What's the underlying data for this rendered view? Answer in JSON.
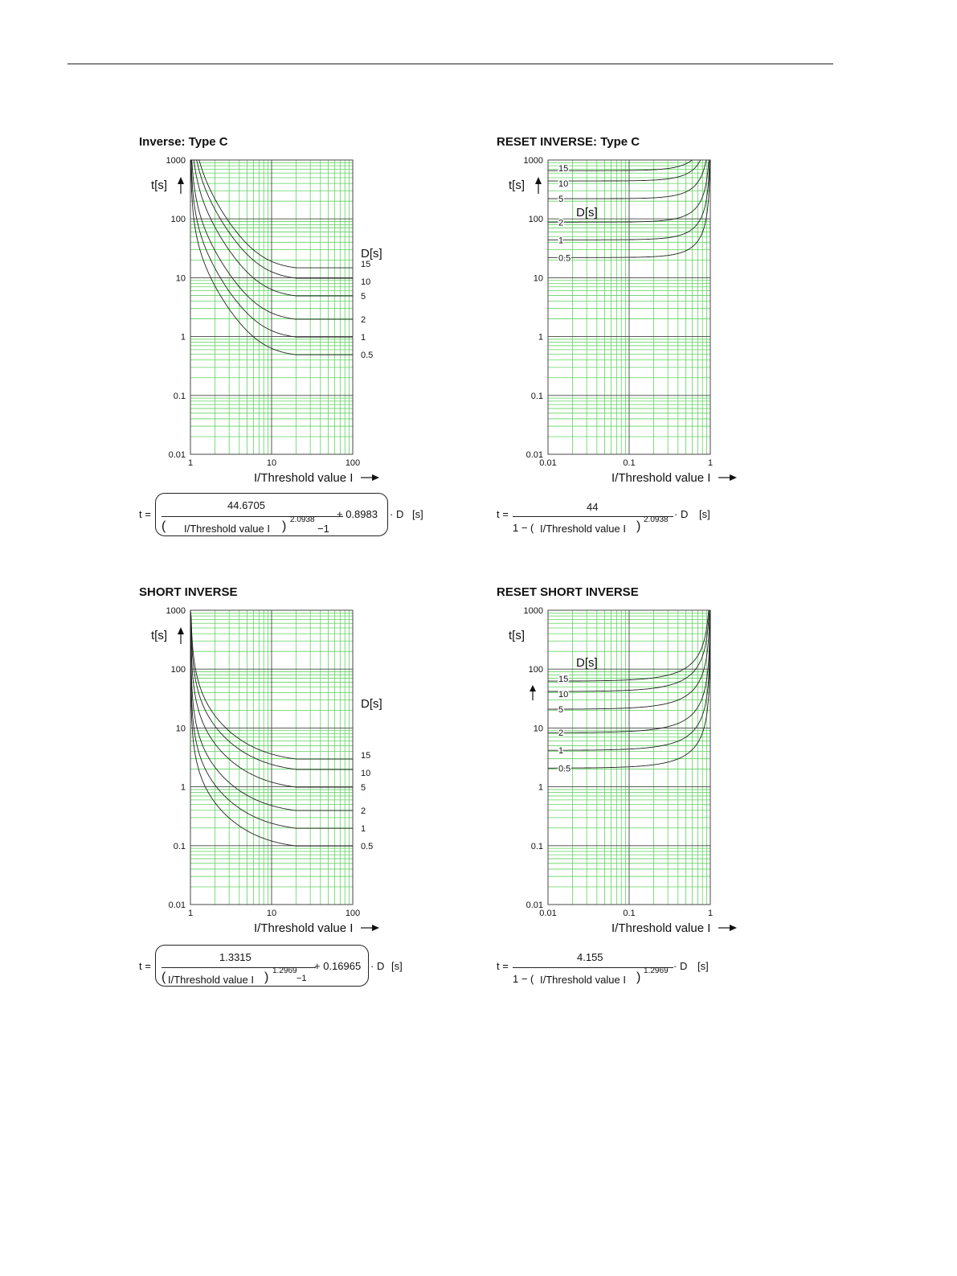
{
  "charts": [
    {
      "title": "Inverse: Type C",
      "y_unit_label": "t[s]",
      "x_axis_title": "I/Threshold value I",
      "d_header": "D[s]",
      "formula": {
        "lhs": "t =",
        "numerator": "44.6705",
        "denom_left": "(",
        "denom_text": "I/Threshold value I",
        "denom_right": ")",
        "exponent": "2.0938",
        "minus_one": "−1",
        "plus_const": "+ 0.8983",
        "times_d": "· D",
        "unit": "[s]"
      }
    },
    {
      "title": "RESET INVERSE: Type C",
      "y_unit_label": "t[s]",
      "x_axis_title": "I/Threshold value I",
      "d_header": "D[s]",
      "formula": {
        "lhs": "t =",
        "numerator": "44",
        "denom_left": "1 − (",
        "denom_text": "I/Threshold value I",
        "denom_right": ")",
        "exponent": "2.0938",
        "times_d": "· D",
        "unit": "[s]"
      }
    },
    {
      "title": "SHORT INVERSE",
      "y_unit_label": "t[s]",
      "x_axis_title": "I/Threshold value I",
      "d_header": "D[s]",
      "formula": {
        "lhs": "t =",
        "numerator": "1.3315",
        "denom_left": "(",
        "denom_text": "I/Threshold value I",
        "denom_right": ")",
        "exponent": "1.2969",
        "minus_one": "−1",
        "plus_const": "+ 0.16965",
        "times_d": "· D",
        "unit": "[s]"
      }
    },
    {
      "title": "RESET SHORT INVERSE",
      "y_unit_label": "t[s]",
      "x_axis_title": "I/Threshold value I",
      "d_header": "D[s]",
      "formula": {
        "lhs": "t =",
        "numerator": "4.155",
        "denom_left": "1 − (",
        "denom_text": "I/Threshold value I",
        "denom_right": ")",
        "exponent": "1.2969",
        "times_d": "· D",
        "unit": "[s]"
      }
    }
  ],
  "chart_data": [
    {
      "type": "line",
      "title": "Inverse: Type C",
      "xlabel": "I/Threshold value I",
      "ylabel": "t[s]",
      "x_scale": "log",
      "y_scale": "log",
      "xlim": [
        1,
        100
      ],
      "ylim": [
        0.01,
        1000
      ],
      "x_ticks": [
        "1",
        "10",
        "100"
      ],
      "y_ticks": [
        "0.01",
        "0.1",
        "1",
        "10",
        "100",
        "1000"
      ],
      "grid": true,
      "legend_title": "D[s]",
      "x_end": 20,
      "A": 44.6705,
      "p": 2.0938,
      "B": 0.8983,
      "mode": "trip",
      "series": [
        {
          "name": "15",
          "D": 15
        },
        {
          "name": "10",
          "D": 10
        },
        {
          "name": "5",
          "D": 5
        },
        {
          "name": "2",
          "D": 2
        },
        {
          "name": "1",
          "D": 1
        },
        {
          "name": "0.5",
          "D": 0.5
        }
      ]
    },
    {
      "type": "line",
      "title": "RESET INVERSE: Type C",
      "xlabel": "I/Threshold value I",
      "ylabel": "t[s]",
      "x_scale": "log",
      "y_scale": "log",
      "xlim": [
        0.01,
        1
      ],
      "ylim": [
        0.01,
        1000
      ],
      "x_ticks": [
        "0.01",
        "0.1",
        "1"
      ],
      "y_ticks": [
        "0.01",
        "0.1",
        "1",
        "10",
        "100",
        "1000"
      ],
      "grid": true,
      "legend_title": "D[s]",
      "A": 44,
      "p": 2.0938,
      "mode": "reset",
      "series": [
        {
          "name": "15",
          "D": 15
        },
        {
          "name": "10",
          "D": 10
        },
        {
          "name": "5",
          "D": 5
        },
        {
          "name": "2",
          "D": 2
        },
        {
          "name": "1",
          "D": 1
        },
        {
          "name": "0.5",
          "D": 0.5
        }
      ]
    },
    {
      "type": "line",
      "title": "SHORT INVERSE",
      "xlabel": "I/Threshold value I",
      "ylabel": "t[s]",
      "x_scale": "log",
      "y_scale": "log",
      "xlim": [
        1,
        100
      ],
      "ylim": [
        0.01,
        1000
      ],
      "x_ticks": [
        "1",
        "10",
        "100"
      ],
      "y_ticks": [
        "0.01",
        "0.1",
        "1",
        "10",
        "100",
        "1000"
      ],
      "grid": true,
      "legend_title": "D[s]",
      "x_end": 20,
      "A": 1.3315,
      "p": 1.2969,
      "B": 0.16965,
      "mode": "trip",
      "series": [
        {
          "name": "15",
          "D": 15
        },
        {
          "name": "10",
          "D": 10
        },
        {
          "name": "5",
          "D": 5
        },
        {
          "name": "2",
          "D": 2
        },
        {
          "name": "1",
          "D": 1
        },
        {
          "name": "0.5",
          "D": 0.5
        }
      ]
    },
    {
      "type": "line",
      "title": "RESET SHORT INVERSE",
      "xlabel": "I/Threshold value I",
      "ylabel": "t[s]",
      "x_scale": "log",
      "y_scale": "log",
      "xlim": [
        0.01,
        1
      ],
      "ylim": [
        0.01,
        1000
      ],
      "x_ticks": [
        "0.01",
        "0.1",
        "1"
      ],
      "y_ticks": [
        "0.01",
        "0.1",
        "1",
        "10",
        "100",
        "1000"
      ],
      "grid": true,
      "legend_title": "D[s]",
      "A": 4.155,
      "p": 1.2969,
      "mode": "reset",
      "series": [
        {
          "name": "15",
          "D": 15
        },
        {
          "name": "10",
          "D": 10
        },
        {
          "name": "5",
          "D": 5
        },
        {
          "name": "2",
          "D": 2
        },
        {
          "name": "1",
          "D": 1
        },
        {
          "name": "0.5",
          "D": 0.5
        }
      ]
    }
  ],
  "colors": {
    "grid_minor": "#5fd35f",
    "grid_major": "#444444",
    "curve": "#222222",
    "text": "#111111"
  }
}
